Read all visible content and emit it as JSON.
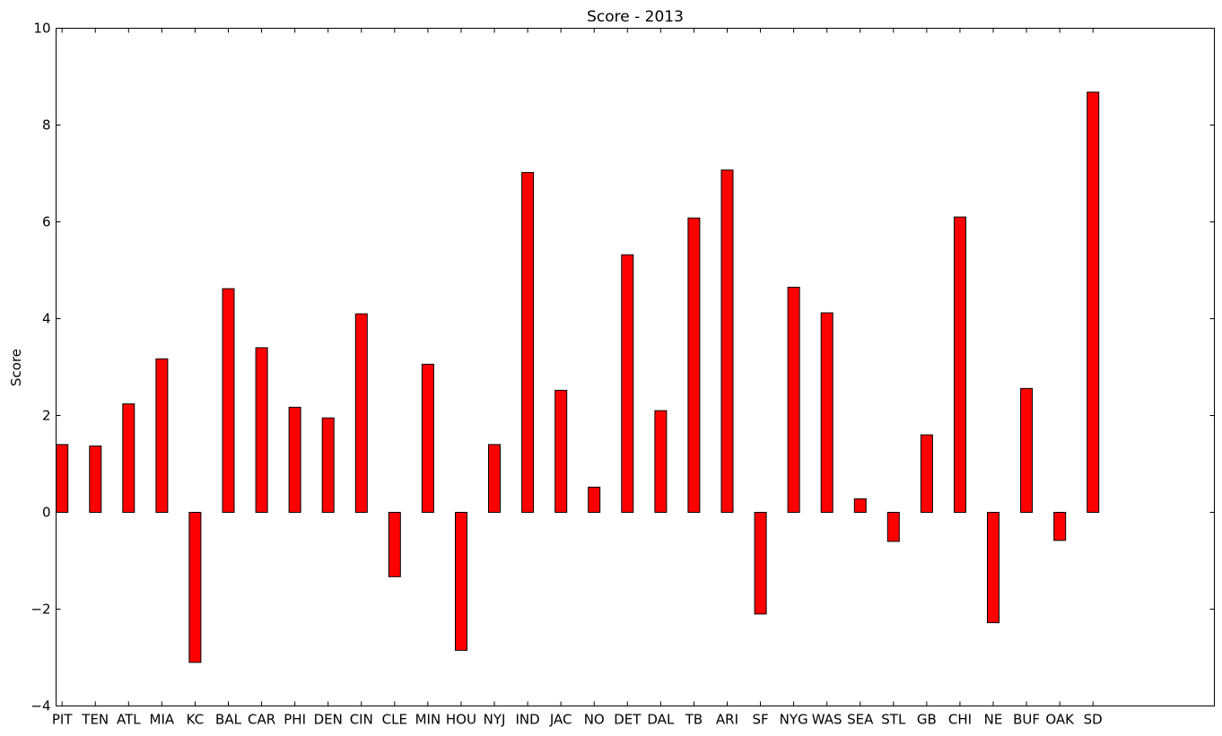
{
  "chart_data": {
    "type": "bar",
    "title": "Score - 2013",
    "xlabel": "",
    "ylabel": "Score",
    "ylim": [
      -4,
      10
    ],
    "yticks": [
      -4,
      -2,
      0,
      2,
      4,
      6,
      8,
      10
    ],
    "ytick_labels": [
      "−4",
      "−2",
      "0",
      "2",
      "4",
      "6",
      "8",
      "10"
    ],
    "grid": false,
    "bar_color": "#ff0000",
    "edge_color": "#000000",
    "categories": [
      "PIT",
      "TEN",
      "ATL",
      "MIA",
      "KC",
      "BAL",
      "CAR",
      "PHI",
      "DEN",
      "CIN",
      "CLE",
      "MIN",
      "HOU",
      "NYJ",
      "IND",
      "JAC",
      "NO",
      "DET",
      "DAL",
      "TB",
      "ARI",
      "SF",
      "NYG",
      "WAS",
      "SEA",
      "STL",
      "GB",
      "CHI",
      "NE",
      "BUF",
      "OAK",
      "SD"
    ],
    "values": [
      1.4,
      1.37,
      2.24,
      3.17,
      -3.1,
      4.62,
      3.4,
      2.17,
      1.95,
      4.1,
      -1.33,
      3.06,
      -2.85,
      1.4,
      7.02,
      2.52,
      0.52,
      5.32,
      2.1,
      6.08,
      7.07,
      -2.1,
      4.65,
      4.12,
      0.28,
      -0.6,
      1.6,
      6.1,
      -2.28,
      2.56,
      -0.58,
      8.68
    ]
  }
}
